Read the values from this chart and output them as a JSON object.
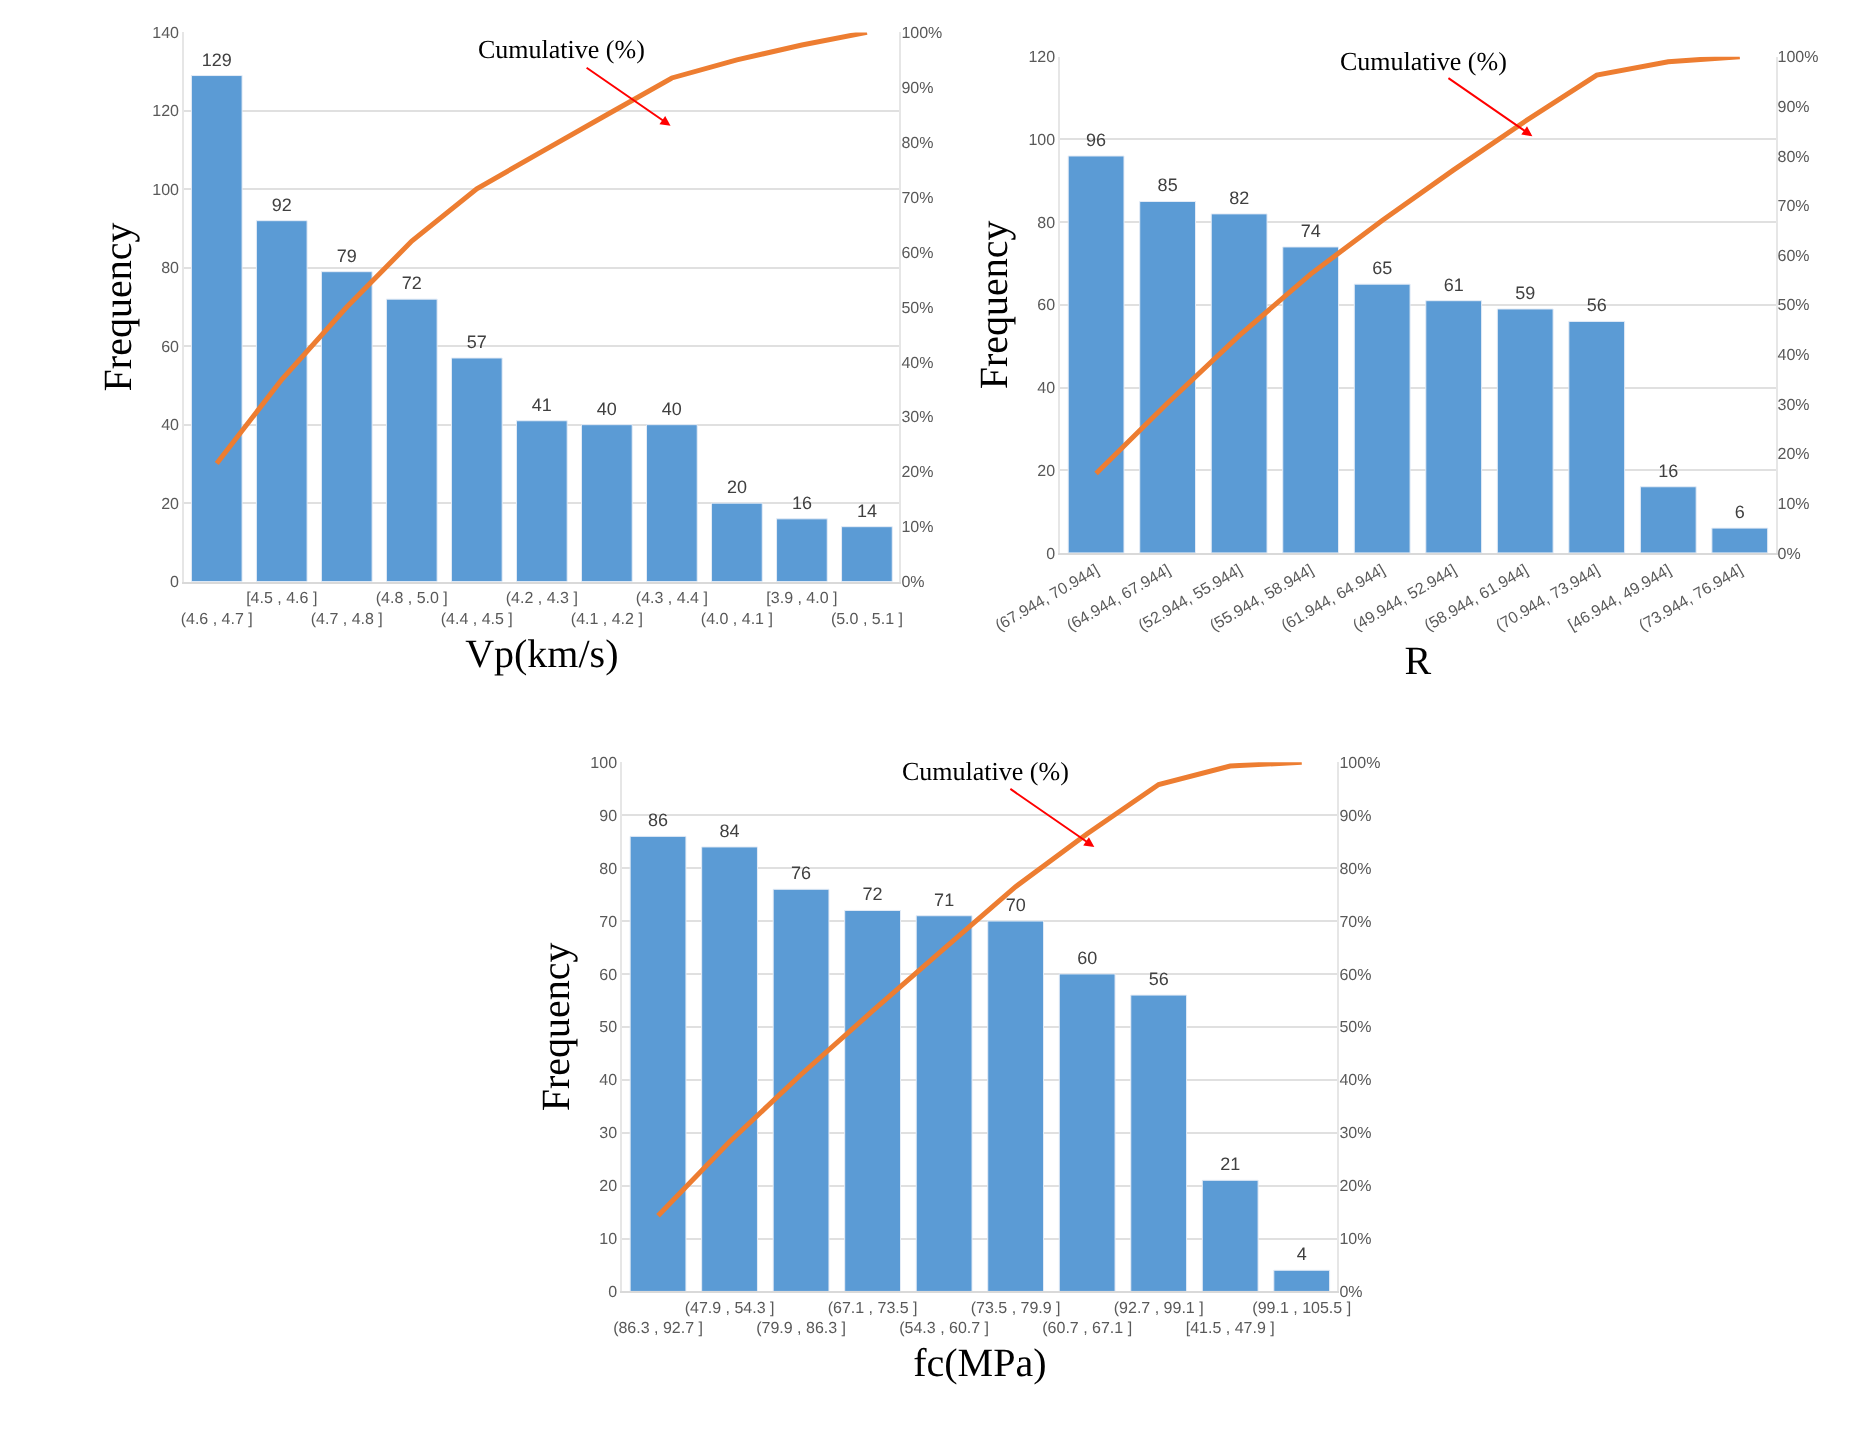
{
  "chart_data": [
    {
      "type": "bar",
      "xlabel": "Vp(km/s)",
      "ylabel": "Frequency",
      "categories": [
        "(4.6 , 4.7 ]",
        "[4.5 , 4.6 ]",
        "(4.7 , 4.8 ]",
        "(4.8 , 5.0 ]",
        "(4.4 , 4.5 ]",
        "(4.2 , 4.3 ]",
        "(4.1 , 4.2 ]",
        "(4.3 , 4.4 ]",
        "(4.0 , 4.1 ]",
        "[3.9 , 4.0 ]",
        "(5.0 , 5.1 ]"
      ],
      "series": [
        {
          "color": "#5b9bd5",
          "values": [
            129,
            92,
            79,
            72,
            57,
            41,
            40,
            40,
            20,
            16,
            14
          ],
          "value_labels": [
            "129",
            "92",
            "79",
            "72",
            "57",
            "41",
            "40",
            "40",
            "20",
            "16",
            "14"
          ]
        },
        {
          "type": "line",
          "axis": "y2",
          "color": "#ed7d31",
          "values": [
            21.5,
            36.8,
            50,
            62,
            71.5,
            78.3,
            85,
            91.7,
            95,
            97.7,
            100
          ]
        }
      ],
      "ylim": [
        0,
        140
      ],
      "yticks": [
        0,
        20,
        40,
        60,
        80,
        100,
        120,
        140
      ],
      "y2lim": [
        0,
        100
      ],
      "y2ticks": [
        {
          "value": 0,
          "label": "0%"
        },
        {
          "value": 10,
          "label": "10%"
        },
        {
          "value": 20,
          "label": "20%"
        },
        {
          "value": 30,
          "label": "30%"
        },
        {
          "value": 40,
          "label": "40%"
        },
        {
          "value": 50,
          "label": "50%"
        },
        {
          "value": 60,
          "label": "60%"
        },
        {
          "value": 70,
          "label": "70%"
        },
        {
          "value": 80,
          "label": "80%"
        },
        {
          "value": 90,
          "label": "90%"
        },
        {
          "value": 100,
          "label": "100%"
        }
      ],
      "annotations": [
        "Cumulative (%)"
      ],
      "grid": "y",
      "marker": "none"
    },
    {
      "type": "bar",
      "xlabel": "R",
      "ylabel": "Frequency",
      "categories": [
        "(67.944, 70.944]",
        "(64.944, 67.944]",
        "(52.944, 55.944]",
        "(55.944, 58.944]",
        "(61.944, 64.944]",
        "(49.944, 52.944]",
        "(58.944, 61.944]",
        "(70.944, 73.944]",
        "[46.944, 49.944]",
        "(73.944, 76.944]"
      ],
      "series": [
        {
          "color": "#5b9bd5",
          "values": [
            96,
            85,
            82,
            74,
            65,
            61,
            59,
            56,
            16,
            6
          ],
          "value_labels": [
            "96",
            "85",
            "82",
            "74",
            "65",
            "61",
            "59",
            "56",
            "16",
            "6"
          ]
        },
        {
          "type": "line",
          "axis": "y2",
          "color": "#ed7d31",
          "values": [
            16,
            30.2,
            43.8,
            56.2,
            67,
            77.2,
            87,
            96.3,
            99,
            100
          ]
        }
      ],
      "ylim": [
        0,
        120
      ],
      "yticks": [
        0,
        20,
        40,
        60,
        80,
        100,
        120
      ],
      "y2lim": [
        0,
        100
      ],
      "y2ticks": [
        {
          "value": 0,
          "label": "0%"
        },
        {
          "value": 10,
          "label": "10%"
        },
        {
          "value": 20,
          "label": "20%"
        },
        {
          "value": 30,
          "label": "30%"
        },
        {
          "value": 40,
          "label": "40%"
        },
        {
          "value": 50,
          "label": "50%"
        },
        {
          "value": 60,
          "label": "60%"
        },
        {
          "value": 70,
          "label": "70%"
        },
        {
          "value": 80,
          "label": "80%"
        },
        {
          "value": 90,
          "label": "90%"
        },
        {
          "value": 100,
          "label": "100%"
        }
      ],
      "annotations": [
        "Cumulative (%)"
      ],
      "grid": "y",
      "marker": "none"
    },
    {
      "type": "bar",
      "xlabel": "fc(MPa)",
      "ylabel": "Frequency",
      "categories": [
        "(86.3 , 92.7 ]",
        "(47.9 , 54.3 ]",
        "(79.9 , 86.3 ]",
        "(67.1 , 73.5 ]",
        "(54.3 , 60.7 ]",
        "(73.5 , 79.9 ]",
        "(60.7 , 67.1 ]",
        "(92.7 , 99.1 ]",
        "[41.5 , 47.9 ]",
        "(99.1 , 105.5 ]"
      ],
      "series": [
        {
          "color": "#5b9bd5",
          "values": [
            86,
            84,
            76,
            72,
            71,
            70,
            60,
            56,
            21,
            4
          ],
          "value_labels": [
            "86",
            "84",
            "76",
            "72",
            "71",
            "70",
            "60",
            "56",
            "21",
            "4"
          ]
        },
        {
          "type": "line",
          "axis": "y2",
          "color": "#ed7d31",
          "values": [
            14.3,
            28.3,
            41,
            53,
            64.8,
            76.5,
            86.5,
            95.8,
            99.3,
            100
          ]
        }
      ],
      "ylim": [
        0,
        100
      ],
      "yticks": [
        0,
        10,
        20,
        30,
        40,
        50,
        60,
        70,
        80,
        90,
        100
      ],
      "y2lim": [
        0,
        100
      ],
      "y2ticks": [
        {
          "value": 0,
          "label": "0%"
        },
        {
          "value": 10,
          "label": "10%"
        },
        {
          "value": 20,
          "label": "20%"
        },
        {
          "value": 30,
          "label": "30%"
        },
        {
          "value": 40,
          "label": "40%"
        },
        {
          "value": 50,
          "label": "50%"
        },
        {
          "value": 60,
          "label": "60%"
        },
        {
          "value": 70,
          "label": "70%"
        },
        {
          "value": 80,
          "label": "80%"
        },
        {
          "value": 90,
          "label": "90%"
        },
        {
          "value": 100,
          "label": "100%"
        }
      ],
      "annotations": [
        "Cumulative (%)"
      ],
      "grid": "y",
      "marker": "none"
    }
  ]
}
